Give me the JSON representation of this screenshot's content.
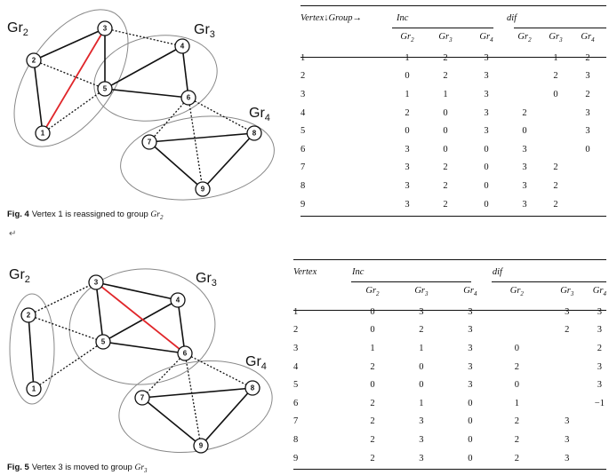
{
  "figure4": {
    "groups": [
      "Gr",
      "Gr",
      "Gr"
    ],
    "group_subs": [
      "2",
      "3",
      "4"
    ],
    "nodes": [
      "1",
      "2",
      "3",
      "4",
      "5",
      "6",
      "7",
      "8",
      "9"
    ],
    "caption_label": "Fig. 4",
    "caption_text": "Vertex 1 is reassigned to group ",
    "caption_group": "Gr",
    "caption_sub": "2"
  },
  "figure5": {
    "groups": [
      "Gr",
      "Gr",
      "Gr"
    ],
    "group_subs": [
      "2",
      "3",
      "4"
    ],
    "nodes": [
      "1",
      "2",
      "3",
      "4",
      "5",
      "6",
      "7",
      "8",
      "9"
    ],
    "caption_label": "Fig. 5",
    "caption_text": "Vertex 3 is moved to group ",
    "caption_group": "Gr",
    "caption_sub": "3"
  },
  "return_symbol": "↵",
  "table1": {
    "corner": "Vertex↓Group→",
    "inc_label": "Inc",
    "dif_label": "dif",
    "sub_headers": [
      "Gr2",
      "Gr3",
      "Gr4",
      "Gr2",
      "Gr3",
      "Gr4"
    ],
    "rows": [
      [
        "1",
        "1",
        "2",
        "3",
        "",
        "1",
        "2"
      ],
      [
        "2",
        "0",
        "2",
        "3",
        "",
        "2",
        "3"
      ],
      [
        "3",
        "1",
        "1",
        "3",
        "",
        "0",
        "2"
      ],
      [
        "4",
        "2",
        "0",
        "3",
        "2",
        "",
        "3"
      ],
      [
        "5",
        "0",
        "0",
        "3",
        "0",
        "",
        "3"
      ],
      [
        "6",
        "3",
        "0",
        "0",
        "3",
        "",
        "0"
      ],
      [
        "7",
        "3",
        "2",
        "0",
        "3",
        "2",
        ""
      ],
      [
        "8",
        "3",
        "2",
        "0",
        "3",
        "2",
        ""
      ],
      [
        "9",
        "3",
        "2",
        "0",
        "3",
        "2",
        ""
      ]
    ]
  },
  "table2": {
    "corner": "Vertex",
    "inc_label": "Inc",
    "dif_label": "dif",
    "sub_headers": [
      "Gr2",
      "Gr3",
      "Gr4",
      "Gr2",
      "Gr3",
      "Gr4"
    ],
    "rows": [
      [
        "1",
        "0",
        "3",
        "3",
        "",
        "3",
        "3"
      ],
      [
        "2",
        "0",
        "2",
        "3",
        "",
        "2",
        "3"
      ],
      [
        "3",
        "1",
        "1",
        "3",
        "0",
        "",
        "2"
      ],
      [
        "4",
        "2",
        "0",
        "3",
        "2",
        "",
        "3"
      ],
      [
        "5",
        "0",
        "0",
        "3",
        "0",
        "",
        "3"
      ],
      [
        "6",
        "2",
        "1",
        "0",
        "1",
        "",
        "−1"
      ],
      [
        "7",
        "2",
        "3",
        "0",
        "2",
        "3",
        ""
      ],
      [
        "8",
        "2",
        "3",
        "0",
        "2",
        "3",
        ""
      ],
      [
        "9",
        "2",
        "3",
        "0",
        "2",
        "3",
        ""
      ]
    ]
  }
}
